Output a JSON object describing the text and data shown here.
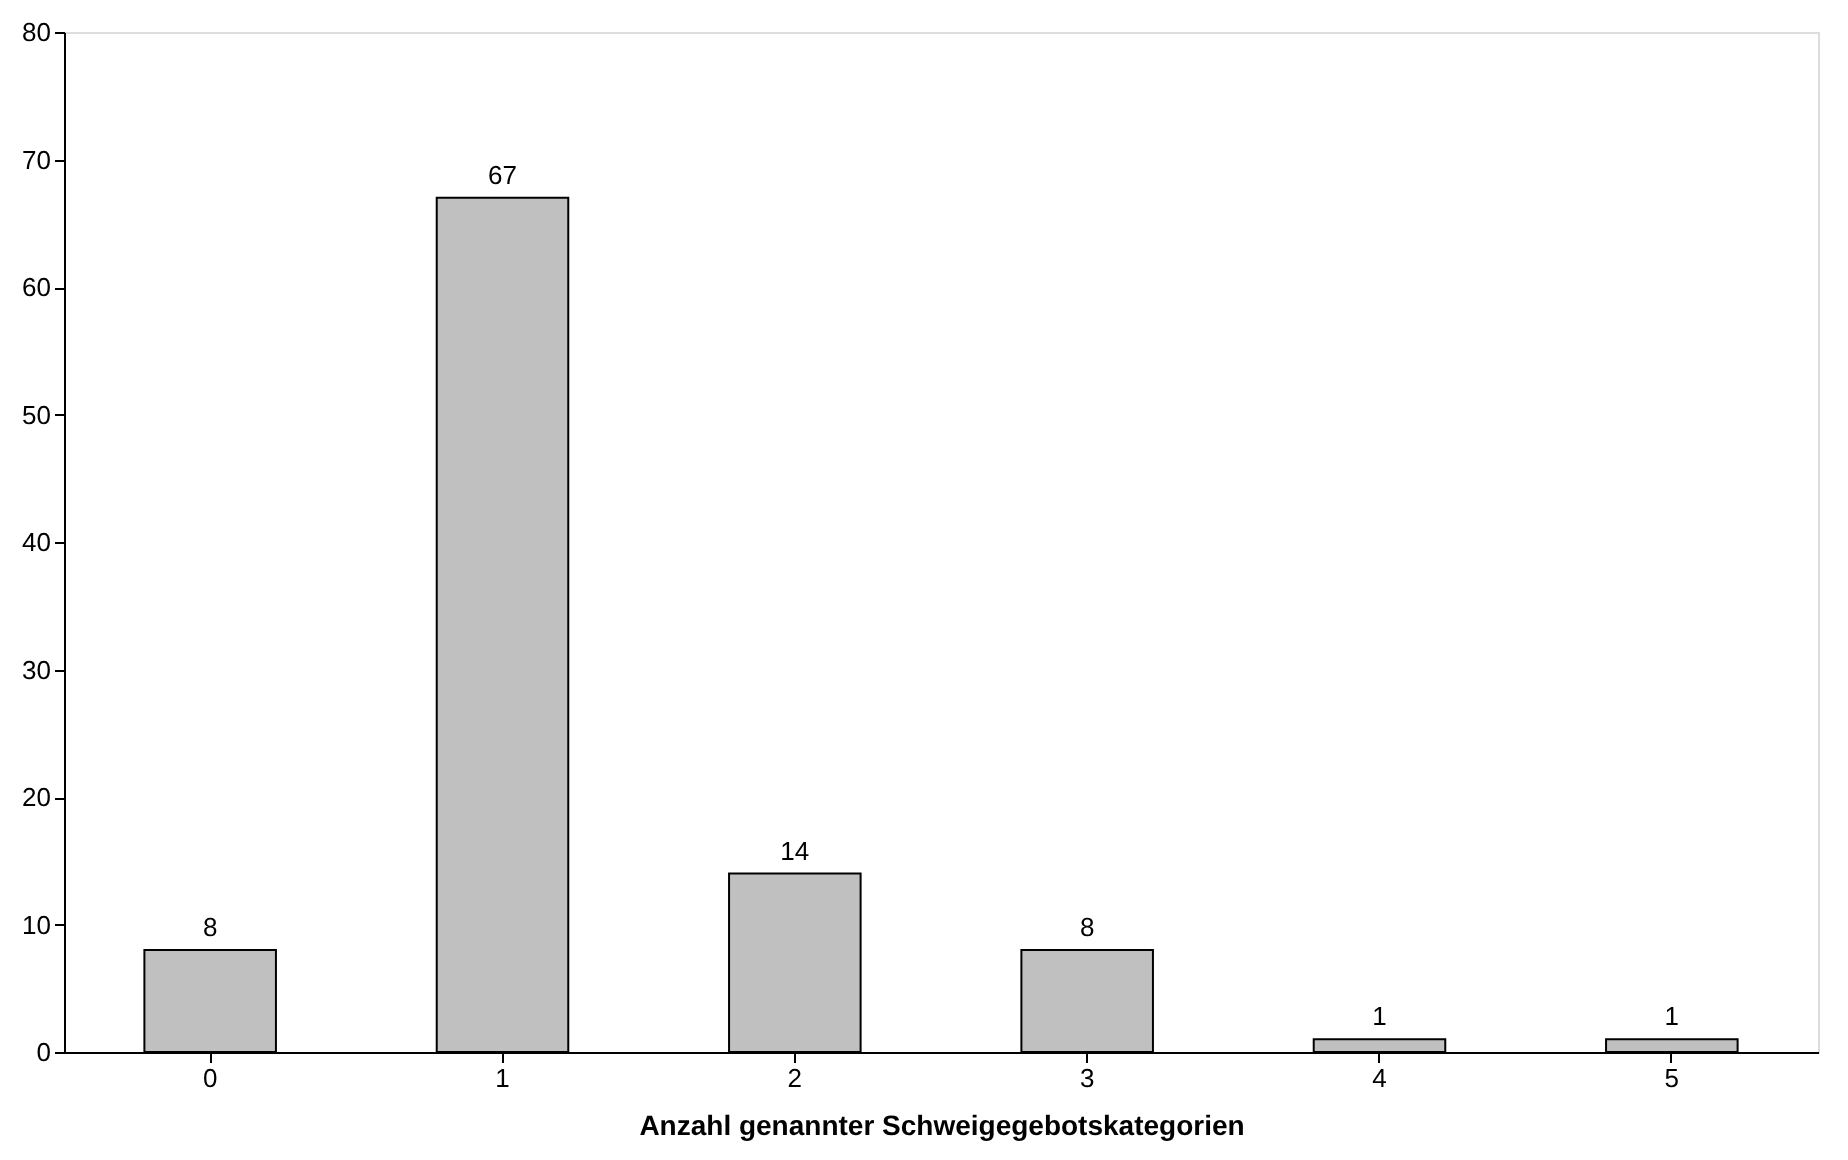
{
  "chart_data": {
    "type": "bar",
    "xlabel": "Anzahl genannter Schweigegebotskategorien",
    "categories": [
      "0",
      "1",
      "2",
      "3",
      "4",
      "5"
    ],
    "values": [
      8,
      67,
      14,
      8,
      1,
      1
    ],
    "color": "#c0c0c0",
    "ylim": [
      0,
      80
    ],
    "yticks": [
      0,
      10,
      20,
      30,
      40,
      50,
      60,
      70,
      80
    ],
    "data_labels": true
  }
}
